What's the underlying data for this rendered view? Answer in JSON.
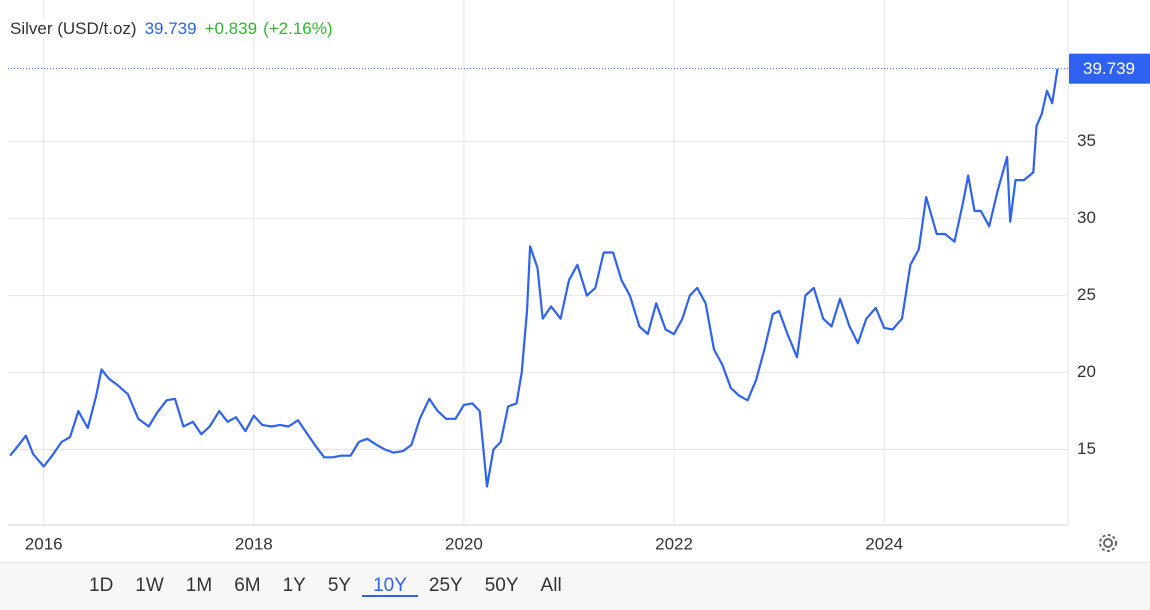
{
  "header": {
    "title": "Silver (USD/t.oz)",
    "price": "39.739",
    "change": "+0.839",
    "change_pct": "(+2.16%)"
  },
  "chart_data": {
    "type": "line",
    "color": "#2f62f0",
    "grid": true,
    "xlim": [
      2015.66,
      2025.75
    ],
    "xticks": [
      2016,
      2018,
      2020,
      2022,
      2024
    ],
    "ylim": [
      10.1,
      44.2
    ],
    "yticks": [
      15,
      20,
      25,
      30,
      35
    ],
    "x": [
      2015.68,
      2015.75,
      2015.83,
      2015.9,
      2016.0,
      2016.08,
      2016.17,
      2016.25,
      2016.33,
      2016.42,
      2016.5,
      2016.55,
      2016.62,
      2016.7,
      2016.8,
      2016.9,
      2017.0,
      2017.08,
      2017.17,
      2017.25,
      2017.33,
      2017.42,
      2017.5,
      2017.58,
      2017.67,
      2017.75,
      2017.83,
      2017.92,
      2018.0,
      2018.08,
      2018.17,
      2018.25,
      2018.33,
      2018.42,
      2018.5,
      2018.58,
      2018.67,
      2018.75,
      2018.83,
      2018.92,
      2019.0,
      2019.08,
      2019.17,
      2019.25,
      2019.33,
      2019.42,
      2019.5,
      2019.58,
      2019.67,
      2019.75,
      2019.83,
      2019.92,
      2020.0,
      2020.08,
      2020.15,
      2020.22,
      2020.28,
      2020.35,
      2020.42,
      2020.5,
      2020.55,
      2020.6,
      2020.63,
      2020.7,
      2020.75,
      2020.83,
      2020.92,
      2021.0,
      2021.08,
      2021.17,
      2021.25,
      2021.33,
      2021.42,
      2021.5,
      2021.58,
      2021.67,
      2021.75,
      2021.83,
      2021.92,
      2022.0,
      2022.08,
      2022.15,
      2022.22,
      2022.3,
      2022.38,
      2022.46,
      2022.54,
      2022.62,
      2022.7,
      2022.78,
      2022.86,
      2022.94,
      2023.0,
      2023.08,
      2023.17,
      2023.25,
      2023.33,
      2023.42,
      2023.5,
      2023.58,
      2023.67,
      2023.75,
      2023.83,
      2023.92,
      2024.0,
      2024.08,
      2024.17,
      2024.25,
      2024.33,
      2024.4,
      2024.5,
      2024.58,
      2024.67,
      2024.75,
      2024.8,
      2024.86,
      2024.92,
      2025.0,
      2025.08,
      2025.17,
      2025.2,
      2025.25,
      2025.33,
      2025.42,
      2025.45,
      2025.5,
      2025.55,
      2025.6,
      2025.65
    ],
    "values": [
      14.6,
      15.2,
      15.9,
      14.7,
      13.9,
      14.6,
      15.5,
      15.8,
      17.5,
      16.4,
      18.5,
      20.2,
      19.6,
      19.2,
      18.6,
      17.0,
      16.5,
      17.4,
      18.2,
      18.3,
      16.5,
      16.8,
      16.0,
      16.5,
      17.5,
      16.8,
      17.1,
      16.2,
      17.2,
      16.6,
      16.5,
      16.6,
      16.5,
      16.9,
      16.1,
      15.3,
      14.5,
      14.5,
      14.6,
      14.6,
      15.5,
      15.7,
      15.3,
      15.0,
      14.8,
      14.9,
      15.3,
      17.0,
      18.3,
      17.5,
      17.0,
      17.0,
      17.9,
      18.0,
      17.5,
      12.6,
      15.0,
      15.5,
      17.8,
      18.0,
      20.0,
      24.0,
      28.2,
      26.8,
      23.5,
      24.3,
      23.5,
      26.0,
      27.0,
      25.0,
      25.5,
      27.8,
      27.8,
      26.0,
      25.0,
      23.0,
      22.5,
      24.5,
      22.8,
      22.5,
      23.5,
      25.0,
      25.5,
      24.5,
      21.5,
      20.5,
      19.0,
      18.5,
      18.2,
      19.5,
      21.5,
      23.8,
      24.0,
      22.5,
      21.0,
      25.0,
      25.5,
      23.5,
      23.0,
      24.8,
      23.0,
      21.9,
      23.5,
      24.2,
      22.9,
      22.8,
      23.5,
      27.0,
      28.0,
      31.4,
      29.0,
      29.0,
      28.5,
      31.0,
      32.8,
      30.5,
      30.5,
      29.5,
      31.8,
      34.0,
      29.8,
      32.5,
      32.5,
      33.0,
      36.0,
      36.8,
      38.3,
      37.5,
      39.739
    ]
  },
  "ranges": [
    "1D",
    "1W",
    "1M",
    "6M",
    "1Y",
    "5Y",
    "10Y",
    "25Y",
    "50Y",
    "All"
  ],
  "active_range": 6
}
